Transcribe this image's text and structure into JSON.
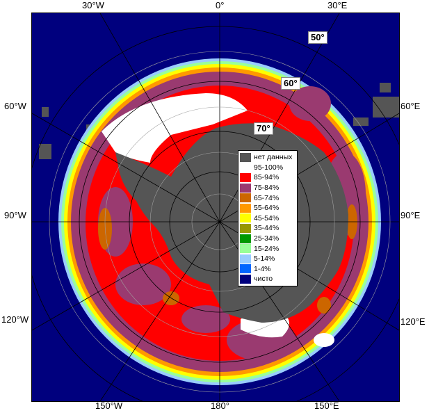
{
  "map": {
    "longitude_labels": {
      "top": [
        "30°W",
        "0°",
        "30°E"
      ],
      "left": [
        "60°W",
        "90°W",
        "120°W"
      ],
      "right": [
        "60°E",
        "90°E",
        "120°E"
      ],
      "bottom": [
        "150°W",
        "180°",
        "150°E"
      ]
    },
    "latitude_labels": [
      "50°",
      "60°",
      "70°"
    ]
  },
  "legend": {
    "items": [
      {
        "label": "нет данных",
        "color": "#555555"
      },
      {
        "label": "95-100%",
        "color": "#ffffff"
      },
      {
        "label": "85-94%",
        "color": "#ff0000"
      },
      {
        "label": "75-84%",
        "color": "#9a3a70"
      },
      {
        "label": "65-74%",
        "color": "#cc6600"
      },
      {
        "label": "55-64%",
        "color": "#ff9900"
      },
      {
        "label": "45-54%",
        "color": "#ffff00"
      },
      {
        "label": "35-44%",
        "color": "#999900"
      },
      {
        "label": "25-34%",
        "color": "#009900"
      },
      {
        "label": "15-24%",
        "color": "#99ff99"
      },
      {
        "label": "5-14%",
        "color": "#99ccff"
      },
      {
        "label": "1-4%",
        "color": "#0066ff"
      },
      {
        "label": "чисто",
        "color": "#00007e"
      }
    ]
  }
}
